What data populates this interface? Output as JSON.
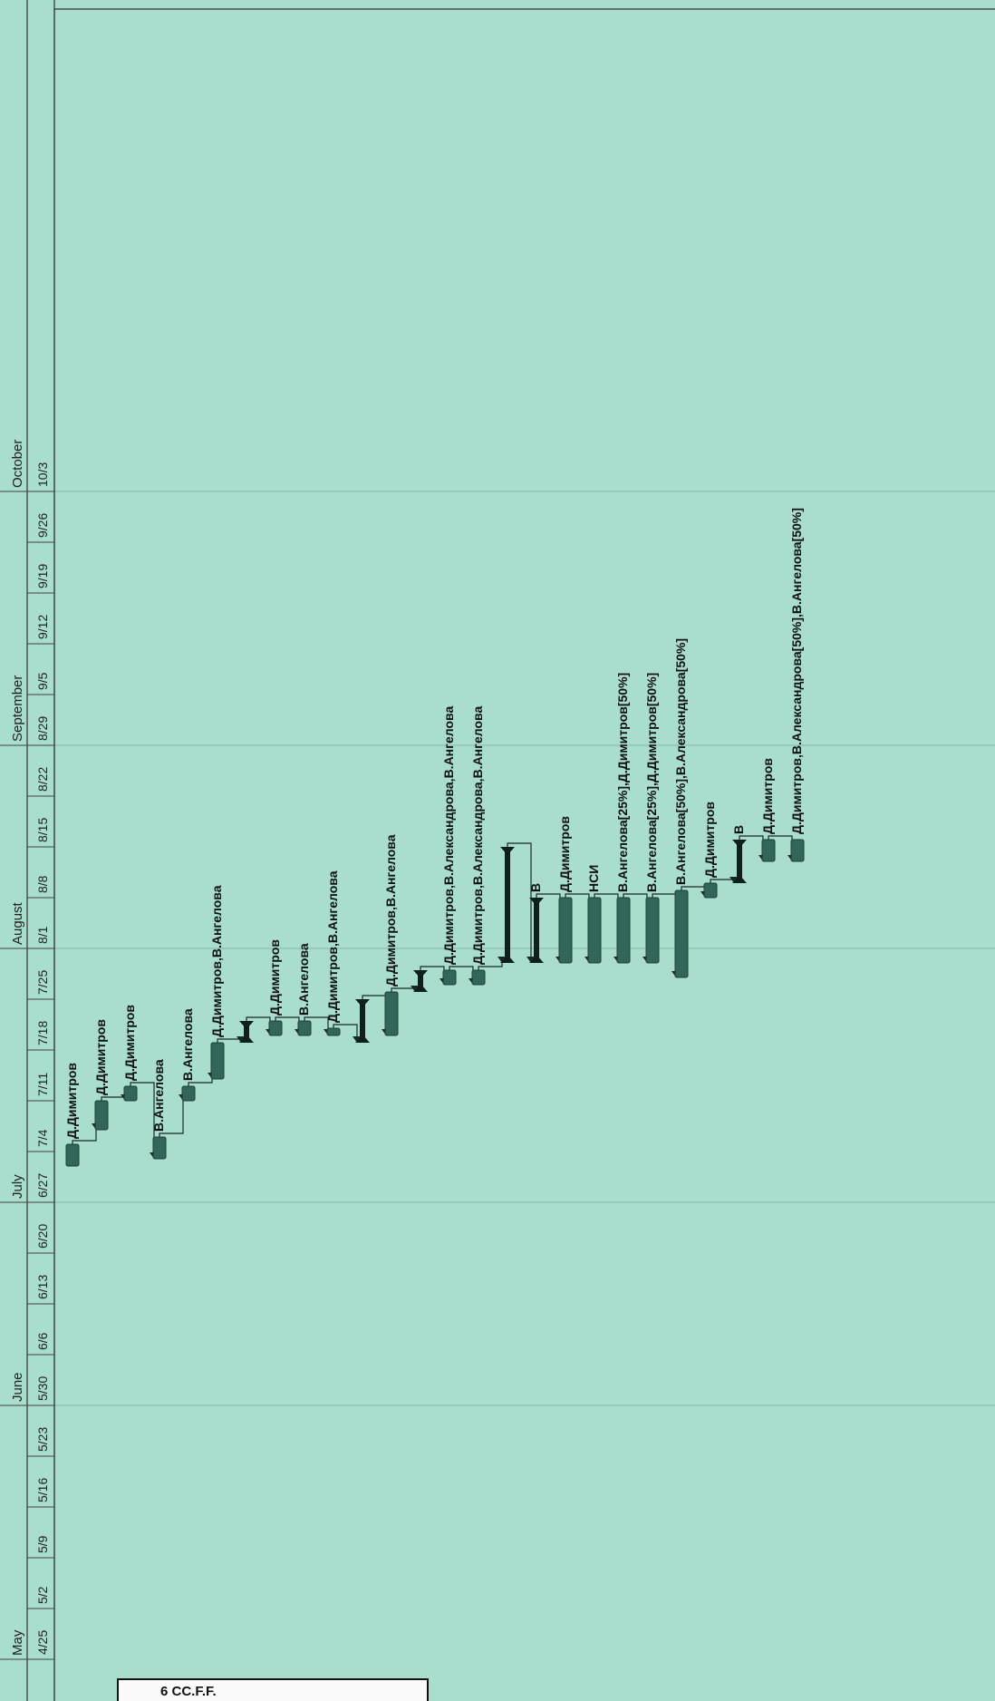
{
  "months": [
    {
      "label": "May",
      "date": "4/25"
    },
    {
      "label": "June",
      "date": "5/30"
    },
    {
      "label": "July",
      "date": "6/27"
    },
    {
      "label": "August",
      "date": "8/1"
    },
    {
      "label": "September",
      "date": "8/29"
    },
    {
      "label": "October",
      "date": "10/3"
    }
  ],
  "week_ticks": [
    "4/25",
    "5/2",
    "5/9",
    "5/16",
    "5/23",
    "5/30",
    "6/6",
    "6/13",
    "6/20",
    "6/27",
    "7/4",
    "7/11",
    "7/18",
    "7/25",
    "8/1",
    "8/8",
    "8/15",
    "8/22",
    "8/29",
    "9/5",
    "9/12",
    "9/19",
    "9/26",
    "10/3"
  ],
  "tasks": [
    {
      "kind": "bar",
      "start": "7/2",
      "finish": "7/5",
      "label": "Д.Димитров"
    },
    {
      "kind": "bar",
      "start": "7/7",
      "finish": "7/11",
      "label": "Д.Димитров"
    },
    {
      "kind": "bar",
      "start": "7/11",
      "finish": "7/13",
      "label": "Д.Димитров"
    },
    {
      "kind": "bar",
      "start": "7/3",
      "finish": "7/6",
      "label": "В.Ангелова"
    },
    {
      "kind": "bar",
      "start": "7/11",
      "finish": "7/13",
      "label": "В.Ангелова"
    },
    {
      "kind": "bar",
      "start": "7/14",
      "finish": "7/19",
      "label": "Д.Димитров,В.Ангелова"
    },
    {
      "kind": "summary",
      "start": "7/19",
      "finish": "7/22",
      "label": ""
    },
    {
      "kind": "bar",
      "start": "7/20",
      "finish": "7/22",
      "label": "Д.Димитров"
    },
    {
      "kind": "bar",
      "start": "7/20",
      "finish": "7/22",
      "label": "В.Ангелова"
    },
    {
      "kind": "bar",
      "start": "7/20",
      "finish": "7/21",
      "label": "Д.Димитров,В.Ангелова"
    },
    {
      "kind": "summary",
      "start": "7/19",
      "finish": "7/25",
      "label": ""
    },
    {
      "kind": "bar",
      "start": "7/20",
      "finish": "7/26",
      "label": "Д.Димитров,В.Ангелова"
    },
    {
      "kind": "summary",
      "start": "7/26",
      "finish": "7/29",
      "label": ""
    },
    {
      "kind": "bar",
      "start": "7/27",
      "finish": "7/29",
      "label": "Д.Димитров,В.Александрова,В.Ангелова"
    },
    {
      "kind": "bar",
      "start": "7/27",
      "finish": "7/29",
      "label": "Д.Димитров,В.Александрова,В.Ангелова"
    },
    {
      "kind": "summary",
      "start": "7/30",
      "finish": "8/15",
      "label": ""
    },
    {
      "kind": "summary",
      "start": "7/30",
      "finish": "8/8",
      "label": "В"
    },
    {
      "kind": "bar",
      "start": "7/30",
      "finish": "8/8",
      "label": "Д.Димитров"
    },
    {
      "kind": "bar",
      "start": "7/30",
      "finish": "8/8",
      "label": "НСИ"
    },
    {
      "kind": "bar",
      "start": "7/30",
      "finish": "8/8",
      "label": "В.Ангелова[25%],Д.Димитров[50%]"
    },
    {
      "kind": "bar",
      "start": "7/30",
      "finish": "8/8",
      "label": "В.Ангелова[25%],Д.Димитров[50%]"
    },
    {
      "kind": "bar",
      "start": "7/28",
      "finish": "8/9",
      "label": "В.Ангелова[50%],В.Александрова[50%]"
    },
    {
      "kind": "bar",
      "start": "8/8",
      "finish": "8/10",
      "label": "Д.Димитров"
    },
    {
      "kind": "summary",
      "start": "8/10",
      "finish": "8/16",
      "label": "В"
    },
    {
      "kind": "bar",
      "start": "8/13",
      "finish": "8/16",
      "label": "Д.Димитров"
    },
    {
      "kind": "bar",
      "start": "8/13",
      "finish": "8/16",
      "label": "Д.Димитров,В.Александрова[50%],В.Ангелова[50%]"
    }
  ],
  "footer": {
    "text": "6     CC.F.F."
  },
  "colors": {
    "background": "#a9ddce",
    "bar": "#33665a",
    "summary": "#0f1f1b",
    "gridline": "#5c8d82"
  }
}
